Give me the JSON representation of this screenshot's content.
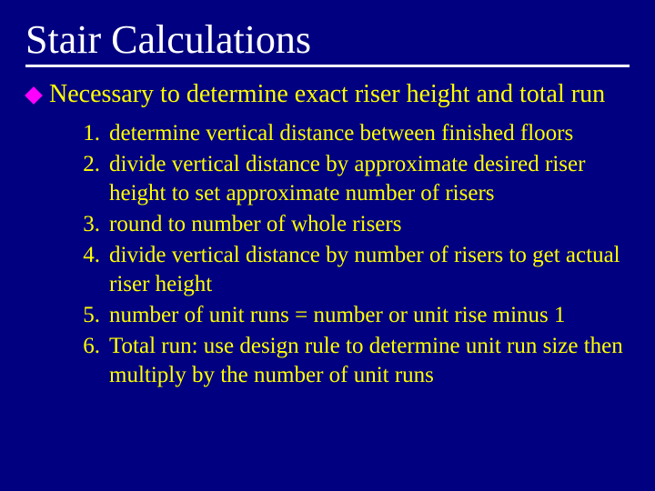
{
  "colors": {
    "background": "#000080",
    "text": "#ffff00",
    "title": "#ffffff",
    "bullet": "#ff00ff",
    "rule": "#ffffff"
  },
  "typography": {
    "title_fontsize": 44,
    "body_fontsize": 28,
    "list_fontsize": 25,
    "font_family": "Times New Roman"
  },
  "title": "Stair Calculations",
  "bullet": "Necessary to determine exact riser height and total run",
  "steps": [
    {
      "num": "1.",
      "text": "determine vertical distance between finished floors"
    },
    {
      "num": "2.",
      "text": "divide vertical distance by approximate desired riser height to set approximate number of risers"
    },
    {
      "num": "3.",
      "text": "round to number of whole risers"
    },
    {
      "num": "4.",
      "text": "divide vertical distance by number of risers to get actual riser height"
    },
    {
      "num": "5.",
      "text": "number of unit runs = number or unit rise minus 1"
    },
    {
      "num": "6.",
      "text": "Total run: use design rule to determine unit run size then multiply by the number of unit runs"
    }
  ]
}
